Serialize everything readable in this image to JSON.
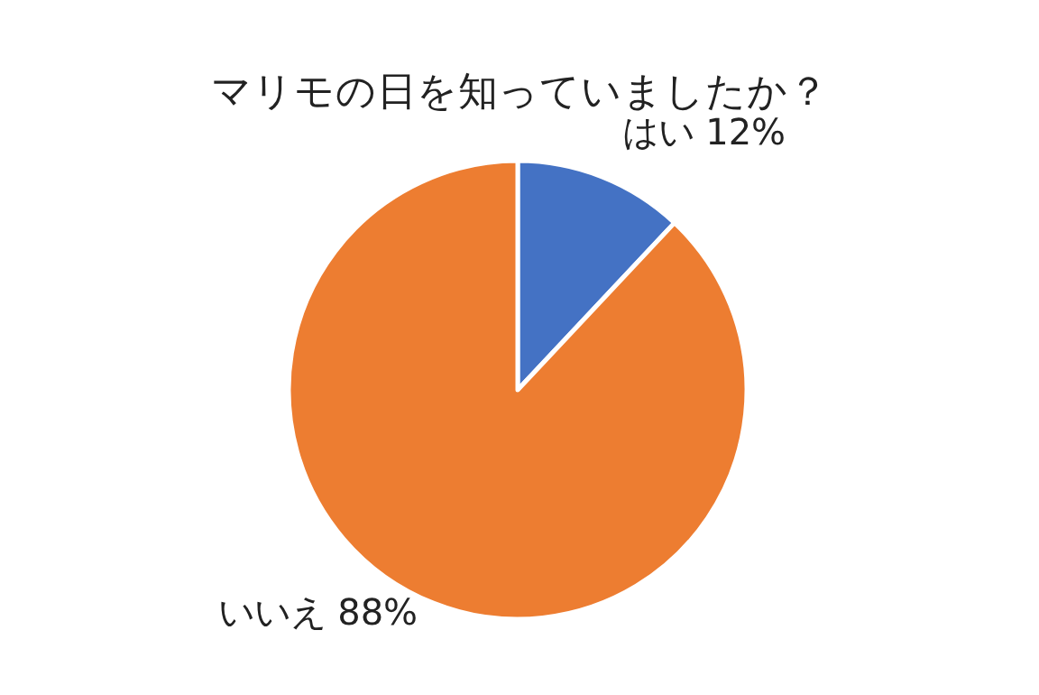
{
  "chart_data": {
    "type": "pie",
    "title": "マリモの日を知っていましたか？",
    "categories": [
      "はい",
      "いいえ"
    ],
    "values": [
      12,
      88
    ],
    "colors": [
      "#4472c4",
      "#ed7d31"
    ],
    "value_labels": [
      "12%",
      "88%"
    ]
  }
}
